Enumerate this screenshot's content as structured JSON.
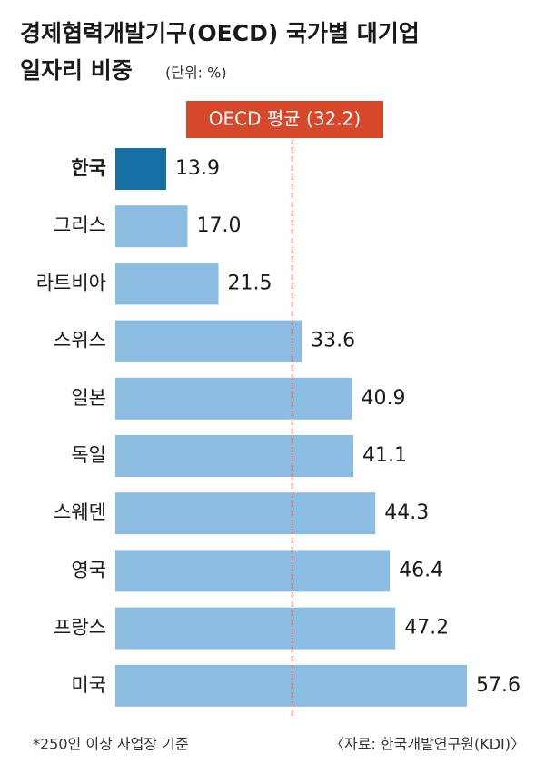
{
  "chart_data": {
    "type": "hbar",
    "title": [
      "경제협력개발기구(OECD) 국가별 대기업",
      "일자리 비중"
    ],
    "subtitle": "(단위: %)",
    "categories": [
      "한국",
      "그리스",
      "라트비아",
      "스위스",
      "일본",
      "독일",
      "스웨덴",
      "영국",
      "프랑스",
      "미국"
    ],
    "values": [
      13.9,
      17.0,
      21.5,
      33.6,
      40.9,
      41.1,
      44.3,
      46.4,
      47.2,
      57.6
    ],
    "value_labels": [
      "13.9",
      "17.0",
      "21.5",
      "33.6",
      "40.9",
      "41.1",
      "44.3",
      "46.4",
      "47.2",
      "57.6"
    ],
    "colors": [
      "#1570a6",
      "#8bbde3",
      "#8bbde3",
      "#8bbde3",
      "#8bbde3",
      "#8bbde3",
      "#8bbde3",
      "#8bbde3",
      "#8bbde3",
      "#8bbde3"
    ],
    "reference": {
      "value": 32.2,
      "label": "OECD 평균 (32.2)",
      "color": "#d9472b"
    },
    "footnote": "*250인 이상 사업장 기준",
    "source": "〈자료: 한국개발연구원(KDI)〉"
  }
}
